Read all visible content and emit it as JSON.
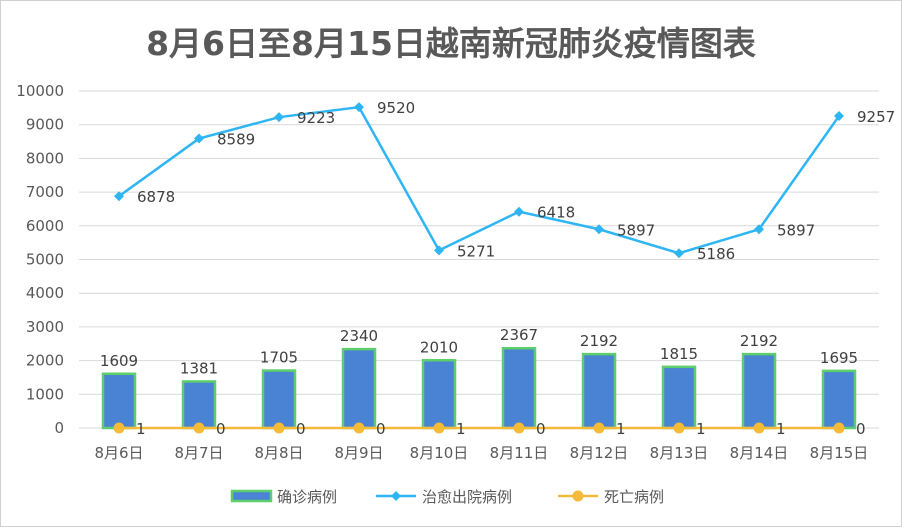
{
  "chart_data": {
    "type": "bar+line",
    "title": "8月6日至8月15日越南新冠肺炎疫情图表",
    "categories": [
      "8月6日",
      "8月7日",
      "8月8日",
      "8月9日",
      "8月10日",
      "8月11日",
      "8月12日",
      "8月13日",
      "8月14日",
      "8月15日"
    ],
    "ylim": [
      0,
      10000
    ],
    "yticks": [
      0,
      1000,
      2000,
      3000,
      4000,
      5000,
      6000,
      7000,
      8000,
      9000,
      10000
    ],
    "grid": true,
    "legend_position": "bottom",
    "series": [
      {
        "name": "确诊病例",
        "type": "bar",
        "color": "#4a82d4",
        "border": "#5ccf6c",
        "values": [
          1609,
          1381,
          1705,
          2340,
          2010,
          2367,
          2192,
          1815,
          2192,
          1695
        ]
      },
      {
        "name": "治愈出院病例",
        "type": "line",
        "marker": "diamond",
        "color": "#2eb5f4",
        "values": [
          6878,
          8589,
          9223,
          9520,
          5271,
          6418,
          5897,
          5186,
          5897,
          9257
        ]
      },
      {
        "name": "死亡病例",
        "type": "line",
        "marker": "circle",
        "color": "#f5ba3a",
        "values": [
          1,
          0,
          0,
          0,
          1,
          0,
          1,
          1,
          1,
          0
        ]
      }
    ]
  }
}
